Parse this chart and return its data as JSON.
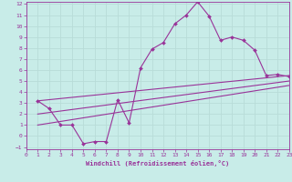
{
  "xlabel": "Windchill (Refroidissement éolien,°C)",
  "bg_color": "#c8ece8",
  "line_color": "#993399",
  "grid_color": "#b8dcd8",
  "xlim": [
    0,
    23
  ],
  "ylim": [
    -1.2,
    12.2
  ],
  "xticks": [
    0,
    1,
    2,
    3,
    4,
    5,
    6,
    7,
    8,
    9,
    10,
    11,
    12,
    13,
    14,
    15,
    16,
    17,
    18,
    19,
    20,
    21,
    22,
    23
  ],
  "yticks": [
    -1,
    0,
    1,
    2,
    3,
    4,
    5,
    6,
    7,
    8,
    9,
    10,
    11,
    12
  ],
  "series1_x": [
    1,
    2,
    3,
    4,
    5,
    6,
    7,
    8,
    9,
    10,
    11,
    12,
    13,
    14,
    15,
    16,
    17,
    18,
    19,
    20,
    21,
    22,
    23
  ],
  "series1_y": [
    3.2,
    2.5,
    1.0,
    1.0,
    -0.7,
    -0.5,
    -0.5,
    3.3,
    1.2,
    6.2,
    7.9,
    8.5,
    10.2,
    11.0,
    12.2,
    10.9,
    8.7,
    9.0,
    8.7,
    7.8,
    5.5,
    5.6,
    5.4
  ],
  "trend1_x": [
    1,
    23
  ],
  "trend1_y": [
    3.2,
    5.5
  ],
  "trend2_x": [
    1,
    23
  ],
  "trend2_y": [
    2.0,
    5.0
  ],
  "trend3_x": [
    1,
    23
  ],
  "trend3_y": [
    1.0,
    4.6
  ]
}
